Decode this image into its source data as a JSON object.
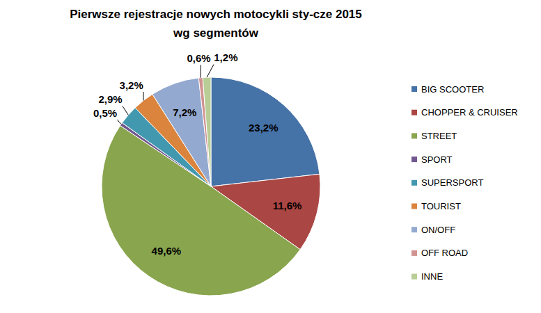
{
  "chart_data": {
    "type": "pie",
    "title": [
      "Pierwsze rejestracje nowych motocykli sty-cze 2015",
      "wg segmentów"
    ],
    "categories": [
      "BIG SCOOTER",
      "CHOPPER & CRUISER",
      "STREET",
      "SPORT",
      "SUPERSPORT",
      "TOURIST",
      "ON/OFF",
      "OFF ROAD",
      "INNE"
    ],
    "values": [
      23.2,
      11.6,
      49.6,
      0.5,
      2.9,
      3.2,
      7.2,
      0.6,
      1.2
    ],
    "value_labels": [
      "23,2%",
      "11,6%",
      "49,6%",
      "0,5%",
      "2,9%",
      "3,2%",
      "7,2%",
      "0,6%",
      "1,2%"
    ],
    "colors": [
      "#4572A7",
      "#AA4643",
      "#89A54E",
      "#71588F",
      "#4198AF",
      "#DB843D",
      "#93A9CF",
      "#D19392",
      "#B9CD96"
    ],
    "data_labels": true,
    "legend": "right"
  }
}
